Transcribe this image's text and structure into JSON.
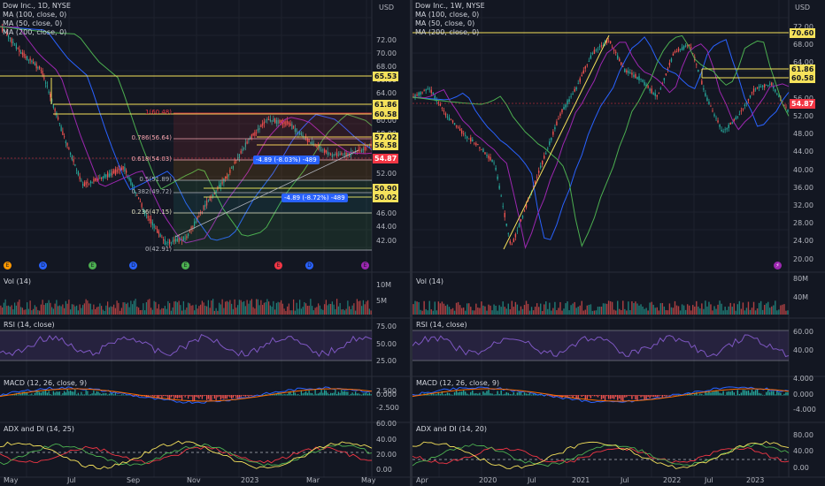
{
  "left": {
    "title": "Dow Inc., 1D, NYSE",
    "ma": [
      "MA (100, close, 0)",
      "MA (50, close, 0)",
      "MA (200, close, 0)"
    ],
    "currency": "USD",
    "price_ticks": [
      "72.00",
      "70.00",
      "68.00",
      "66.00",
      "64.00",
      "62.00",
      "60.00",
      "58.00",
      "56.00",
      "54.00",
      "52.00",
      "50.00",
      "48.00",
      "46.00",
      "44.00",
      "42.00"
    ],
    "price_labels": [
      {
        "v": "65.53",
        "bg": "#f5e15b",
        "fg": "#131722"
      },
      {
        "v": "61.86",
        "bg": "#f5e15b",
        "fg": "#131722"
      },
      {
        "v": "60.58",
        "bg": "#f5e15b",
        "fg": "#131722"
      },
      {
        "v": "57.02",
        "bg": "#f5e15b",
        "fg": "#131722"
      },
      {
        "v": "56.58",
        "bg": "#f5e15b",
        "fg": "#131722"
      },
      {
        "v": "54.87",
        "bg": "#f23645",
        "fg": "#ffffff"
      },
      {
        "v": "50.90",
        "bg": "#f5e15b",
        "fg": "#131722"
      },
      {
        "v": "50.02",
        "bg": "#f5e15b",
        "fg": "#131722"
      }
    ],
    "fib": [
      {
        "t": "1(60.48)",
        "c": "#f23645"
      },
      {
        "t": "0.786(56.64)",
        "c": "#f7a6b0"
      },
      {
        "t": "0.618(54.03)",
        "c": "#f7a6b0"
      },
      {
        "t": "0.5(51.89)",
        "c": "#b2b5be"
      },
      {
        "t": "0.382(49.72)",
        "c": "#b2b5be"
      },
      {
        "t": "0.236(47.15)",
        "c": "#e0e0c0"
      },
      {
        "t": "0(42.91)",
        "c": "#b2b5be"
      }
    ],
    "badges": [
      "-4.89 (-8.03%) -489",
      "-4.89 (-8.72%) -489"
    ],
    "events": [
      "E",
      "D",
      "E",
      "D",
      "E",
      "E",
      "D",
      "E"
    ],
    "time_labels": [
      "May",
      "Jul",
      "Sep",
      "Nov",
      "2023",
      "Mar",
      "May"
    ],
    "vol": {
      "title": "Vol (14)",
      "ticks": [
        "10M",
        "5M"
      ]
    },
    "rsi": {
      "title": "RSI (14, close)",
      "ticks": [
        "75.00",
        "50.00",
        "25.00"
      ]
    },
    "macd": {
      "title": "MACD (12, 26, close, 9)",
      "ticks": [
        "2.500",
        "0.000",
        "-2.500"
      ]
    },
    "adx": {
      "title": "ADX and DI (14, 25)",
      "ticks": [
        "60.00",
        "40.00",
        "20.00",
        "0.00"
      ]
    }
  },
  "right": {
    "title": "Dow Inc., 1W, NYSE",
    "ma": [
      "MA (100, close, 0)",
      "MA (50, close, 0)",
      "MA (200, close, 0)"
    ],
    "currency": "USD",
    "price_ticks": [
      "72.00",
      "68.00",
      "64.00",
      "60.00",
      "56.00",
      "52.00",
      "48.00",
      "44.00",
      "40.00",
      "36.00",
      "32.00",
      "28.00",
      "24.00",
      "20.00"
    ],
    "price_labels": [
      {
        "v": "70.60",
        "bg": "#f5e15b",
        "fg": "#131722"
      },
      {
        "v": "61.86",
        "bg": "#f5e15b",
        "fg": "#131722"
      },
      {
        "v": "60.58",
        "bg": "#f5e15b",
        "fg": "#131722"
      },
      {
        "v": "54.87",
        "bg": "#f23645",
        "fg": "#ffffff"
      }
    ],
    "time_labels": [
      "Apr",
      "2020",
      "Jul",
      "2021",
      "Jul",
      "2022",
      "Jul",
      "2023"
    ],
    "vol": {
      "title": "Vol (14)",
      "ticks": [
        "80M",
        "40M"
      ]
    },
    "rsi": {
      "title": "RSI (14, close)",
      "ticks": [
        "60.00",
        "40.00"
      ]
    },
    "macd": {
      "title": "MACD (12, 26, close, 9)",
      "ticks": [
        "4.000",
        "0.000",
        "-4.000"
      ]
    },
    "adx": {
      "title": "ADX and DI (14, 20)",
      "ticks": [
        "80.00",
        "40.00",
        "0.00"
      ]
    }
  },
  "colors": {
    "up": "#26a69a",
    "down": "#ef5350",
    "ma100": "#2962ff",
    "ma50": "#9c27b0",
    "ma200": "#4caf50",
    "line": "#f5e15b"
  }
}
